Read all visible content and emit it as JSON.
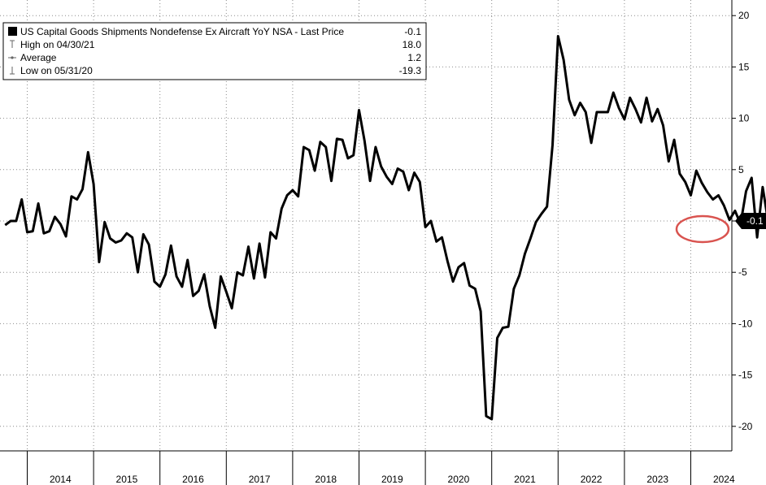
{
  "chart_data": {
    "type": "line",
    "ylim": [
      -23,
      21
    ],
    "yticks": [
      20,
      15,
      10,
      5,
      0,
      -5,
      -10,
      -15,
      -20
    ],
    "ytick_labels": [
      "20",
      "15",
      "10",
      "5",
      "",
      "-5",
      "-10",
      "-15",
      "-20"
    ],
    "year_labels": [
      "2014",
      "2015",
      "2016",
      "2017",
      "2018",
      "2019",
      "2020",
      "2021",
      "2022",
      "2023",
      "2024"
    ],
    "grid": true,
    "legend": {
      "placement": "top-left",
      "series_label": "US Capital Goods Shipments Nondefense Ex Aircraft YoY NSA - Last Price",
      "series_value": "-0.1",
      "high_label": "High on 04/30/21",
      "high_value": "18.0",
      "avg_label": "Average",
      "avg_value": "1.2",
      "low_label": "Low on 05/31/20",
      "low_value": "-19.3"
    },
    "last_value_label": "-0.1",
    "series": [
      {
        "name": "US Capital Goods Shipments Nondefense Ex Aircraft YoY NSA",
        "start": "2013-09",
        "values": [
          -0.4,
          0.0,
          0.0,
          2.1,
          -1.1,
          -1.0,
          1.7,
          -1.2,
          -1.0,
          0.4,
          -0.3,
          -1.5,
          2.4,
          2.1,
          3.1,
          6.7,
          3.6,
          -4.0,
          -0.1,
          -1.7,
          -2.1,
          -1.9,
          -1.2,
          -1.6,
          -5.0,
          -1.3,
          -2.3,
          -5.9,
          -6.4,
          -5.2,
          -2.4,
          -5.4,
          -6.4,
          -3.8,
          -7.3,
          -6.8,
          -5.2,
          -8.3,
          -10.4,
          -5.4,
          -6.9,
          -8.5,
          -5.0,
          -5.3,
          -2.5,
          -5.6,
          -2.2,
          -5.5,
          -1.1,
          -1.7,
          1.2,
          2.5,
          3.0,
          2.4,
          7.2,
          6.9,
          4.9,
          7.7,
          7.2,
          3.9,
          8.0,
          7.9,
          6.1,
          6.4,
          10.8,
          7.8,
          3.9,
          7.2,
          5.3,
          4.3,
          3.6,
          5.1,
          4.8,
          3.0,
          4.7,
          3.8,
          -0.6,
          0.0,
          -2.0,
          -1.6,
          -3.9,
          -5.9,
          -4.5,
          -4.1,
          -6.3,
          -6.6,
          -8.8,
          -19.0,
          -19.3,
          -11.4,
          -10.4,
          -10.3,
          -6.6,
          -5.3,
          -3.2,
          -1.7,
          -0.1,
          0.7,
          1.4,
          7.4,
          18.0,
          15.7,
          11.8,
          10.3,
          11.5,
          10.6,
          7.6,
          10.6,
          10.6,
          10.6,
          12.5,
          11.0,
          9.9,
          12.0,
          10.9,
          9.6,
          12.0,
          9.7,
          10.9,
          9.3,
          5.8,
          7.9,
          4.6,
          3.8,
          2.5,
          4.9,
          3.7,
          2.8,
          2.1,
          2.5,
          1.5,
          0.1,
          1.0,
          -0.3,
          2.9,
          4.2,
          -1.6,
          3.3,
          -0.1
        ]
      }
    ]
  }
}
